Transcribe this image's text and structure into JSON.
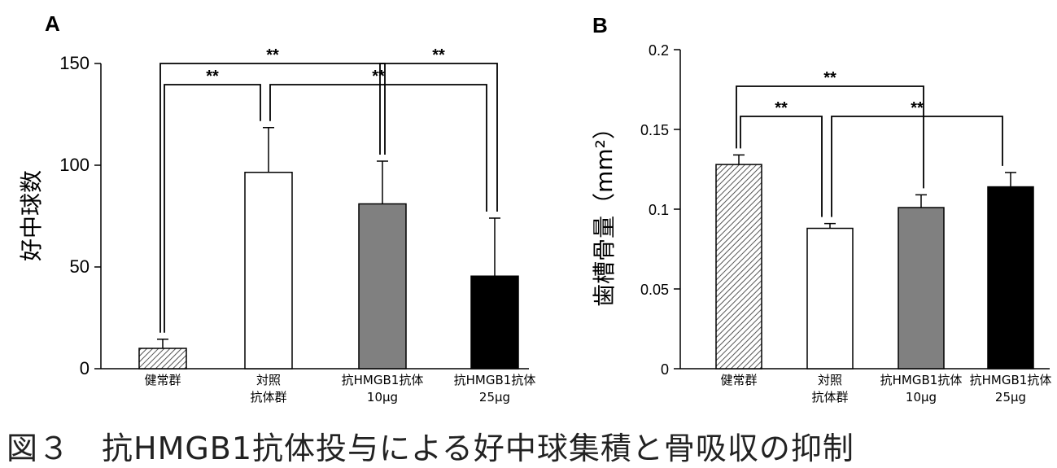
{
  "caption": "図３　抗HMGB1抗体投与による好中球集積と骨吸収の抑制",
  "chart_data": [
    {
      "panel": "A",
      "type": "bar",
      "ylabel": "好中球数",
      "ylim": [
        0,
        150
      ],
      "yticks": [
        "0",
        "50",
        "100",
        "150"
      ],
      "categories": [
        [
          "健常群"
        ],
        [
          "対照",
          "抗体群"
        ],
        [
          "抗HMGB1抗体",
          "10μg"
        ],
        [
          "抗HMGB1抗体",
          "25μg"
        ]
      ],
      "values": [
        10,
        96.5,
        81,
        45.5
      ],
      "errors": [
        4.5,
        22,
        21,
        28.5
      ],
      "fills": [
        "hatch",
        "#ffffff",
        "#808080",
        "#000000"
      ],
      "significance": [
        {
          "from": 0,
          "to": 1,
          "label": "**",
          "level": 1
        },
        {
          "from": 0,
          "to": 2,
          "label": "**",
          "level": 2
        },
        {
          "from": 1,
          "to": 3,
          "label": "**",
          "level": 1
        },
        {
          "from": 2,
          "to": 3,
          "label": "**",
          "level": 2
        }
      ]
    },
    {
      "panel": "B",
      "type": "bar",
      "ylabel": "歯槽骨量（mm²）",
      "ylim": [
        0,
        0.2
      ],
      "yticks": [
        "0",
        "0.05",
        "0.1",
        "0.15",
        "0.2"
      ],
      "categories": [
        [
          "健常群"
        ],
        [
          "対照",
          "抗体群"
        ],
        [
          "抗HMGB1抗体",
          "10μg"
        ],
        [
          "抗HMGB1抗体",
          "25μg"
        ]
      ],
      "values": [
        0.128,
        0.088,
        0.101,
        0.114
      ],
      "errors": [
        0.006,
        0.003,
        0.008,
        0.009
      ],
      "fills": [
        "hatch",
        "#ffffff",
        "#808080",
        "#000000"
      ],
      "significance": [
        {
          "from": 0,
          "to": 1,
          "label": "**",
          "level": 1
        },
        {
          "from": 0,
          "to": 2,
          "label": "**",
          "level": 2
        },
        {
          "from": 1,
          "to": 3,
          "label": "**",
          "level": 1
        }
      ]
    }
  ]
}
